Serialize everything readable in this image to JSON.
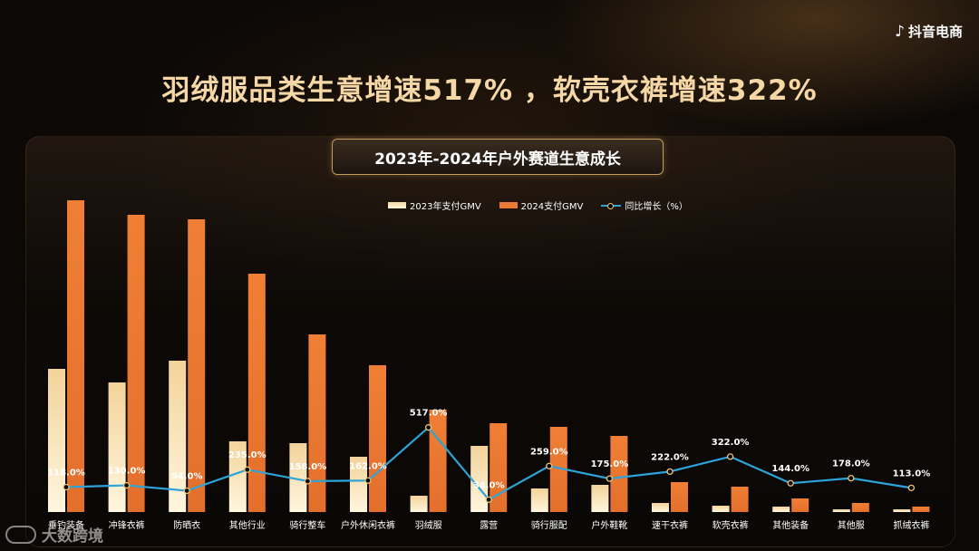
{
  "brand": {
    "icon": "douyin-note-icon",
    "name": "抖音电商"
  },
  "headline": "羽绒服品类生意增速517% ，软壳衣裤增速322%",
  "watermark": {
    "text": "大数跨境"
  },
  "colors": {
    "bar2023": "#f6ddb0",
    "bar2024": "#ec7a34",
    "line": "#2ea3d8",
    "headline": "#f6d8a6"
  },
  "chart_data": {
    "type": "bar",
    "title": "2023年-2024年户外赛道生意成长",
    "legend": [
      "2023年支付GMV",
      "2024支付GMV",
      "同比增长（%）"
    ],
    "legend_position": "top-center",
    "grid": false,
    "categories": [
      "垂钓装备",
      "冲锋衣裤",
      "防晒衣",
      "其他行业",
      "骑行整车",
      "户外休闲衣裤",
      "羽绒服",
      "露营",
      "骑行服配",
      "户外鞋靴",
      "速干衣裤",
      "软壳衣裤",
      "其他装备",
      "其他服",
      "抓绒衣裤"
    ],
    "series": [
      {
        "name": "2023年支付GMV",
        "type": "bar",
        "values": [
          158,
          143,
          167,
          78,
          76,
          61,
          18,
          73,
          26,
          30,
          10,
          7,
          6,
          3,
          3
        ]
      },
      {
        "name": "2024支付GMV",
        "type": "bar",
        "values": [
          344,
          328,
          323,
          263,
          196,
          162,
          113,
          98,
          94,
          84,
          33,
          28,
          15,
          10,
          6
        ]
      },
      {
        "name": "同比增长（%）",
        "type": "line",
        "values": [
          118.0,
          130.0,
          94.0,
          235.0,
          158.0,
          162.0,
          517.0,
          34.0,
          259.0,
          175.0,
          222.0,
          322.0,
          144.0,
          178.0,
          113.0
        ]
      }
    ],
    "growth_labels": [
      "118.0%",
      "130.0%",
      "94.0%",
      "235.0%",
      "158.0%",
      "162.0%",
      "517.0%",
      "34.0%",
      "259.0%",
      "175.0%",
      "222.0%",
      "322.0%",
      "144.0%",
      "178.0%",
      "113.0%"
    ]
  }
}
